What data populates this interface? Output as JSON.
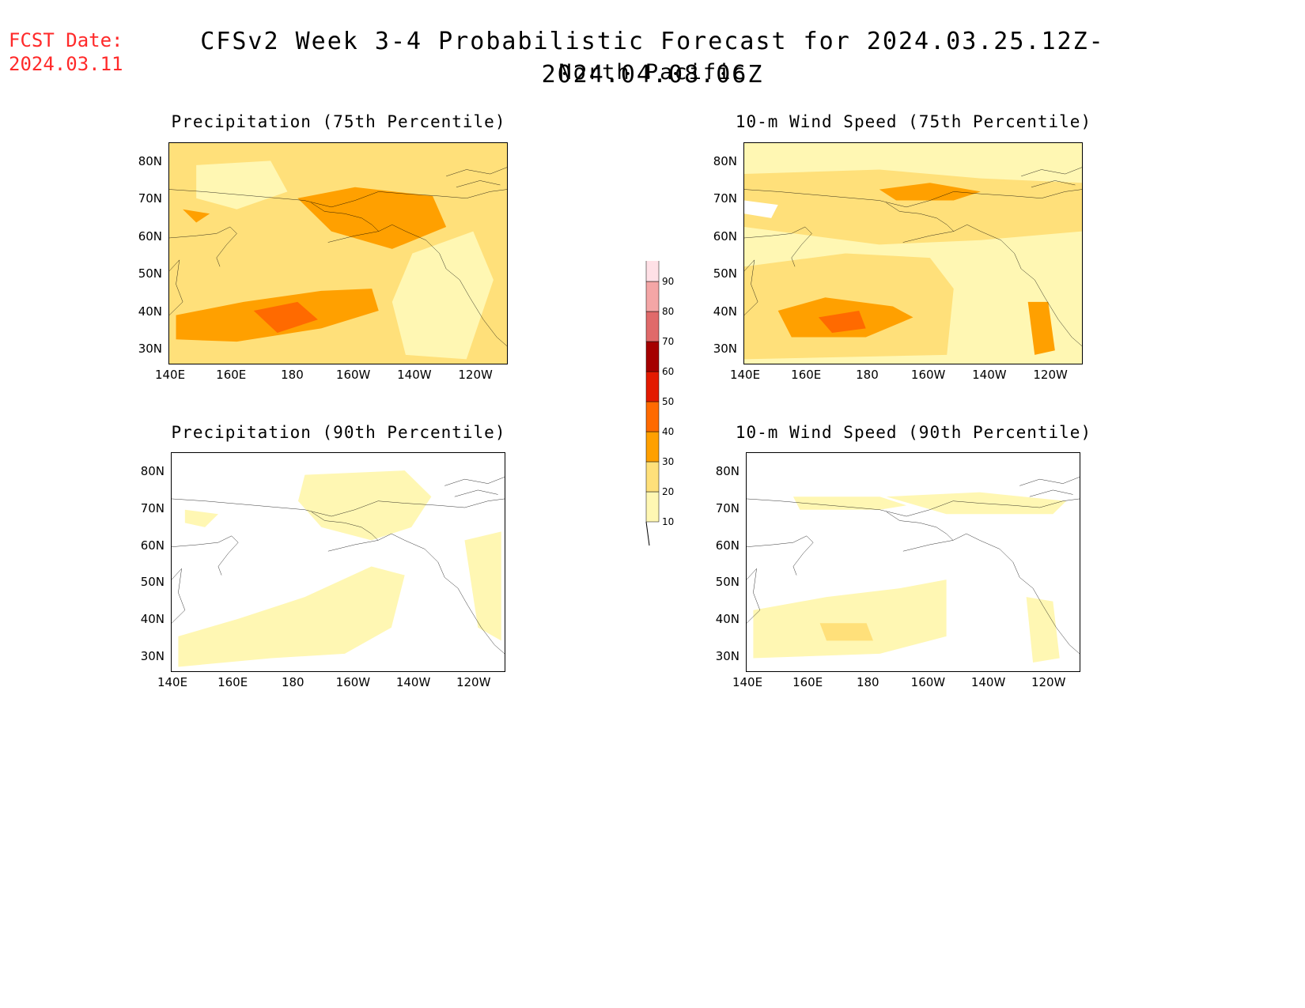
{
  "header": {
    "fcst_label": "FCST Date:",
    "fcst_date": "2024.03.11",
    "title": "CFSv2 Week 3-4 Probabilistic Forecast for 2024.03.25.12Z-2024.04.08.06Z",
    "region": "North Pacific"
  },
  "axes": {
    "lon_labels": [
      "140E",
      "160E",
      "180",
      "160W",
      "140W",
      "120W"
    ],
    "lat_labels": [
      "80N",
      "70N",
      "60N",
      "50N",
      "40N",
      "30N"
    ]
  },
  "panels": [
    {
      "id": "precip-75",
      "title": "Precipitation (75th Percentile)"
    },
    {
      "id": "wind-75",
      "title": "10-m Wind Speed (75th Percentile)"
    },
    {
      "id": "precip-90",
      "title": "Precipitation (90th Percentile)"
    },
    {
      "id": "wind-90",
      "title": "10-m Wind Speed (90th Percentile)"
    }
  ],
  "colorbar": {
    "levels": [
      "10",
      "20",
      "30",
      "40",
      "50",
      "60",
      "70",
      "80",
      "90"
    ],
    "colors": [
      "#fff7b3",
      "#ffe07a",
      "#ffa000",
      "#ff6a00",
      "#e31a00",
      "#a50000",
      "#e06a6a",
      "#f4a6a6",
      "#ffe0e6"
    ]
  }
}
